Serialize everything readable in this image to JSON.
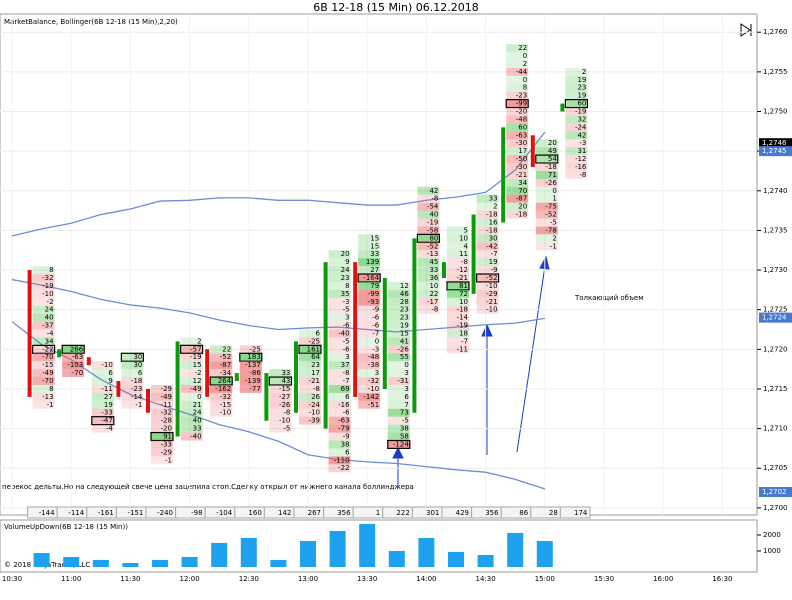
{
  "header": {
    "title": "6B 12-18 (15 Min)  06.12.2018"
  },
  "chart_data": [
    {
      "type": "footprint",
      "title": "MarketBalance, Bollinger(6B 12-18 (15 Min),2,20)",
      "ylim": [
        1.26991,
        1.27623
      ],
      "yticks": [
        {
          "value": 1.27,
          "label": "1,2700"
        },
        {
          "value": 1.2705,
          "label": "1,2705"
        },
        {
          "value": 1.271,
          "label": "1,2710"
        },
        {
          "value": 1.2715,
          "label": "1,2715"
        },
        {
          "value": 1.272,
          "label": "1,2720"
        },
        {
          "value": 1.2725,
          "label": "1,2725"
        },
        {
          "value": 1.273,
          "label": "1,2730"
        },
        {
          "value": 1.2735,
          "label": "1,2735"
        },
        {
          "value": 1.274,
          "label": "1,2740"
        },
        {
          "value": 1.2745,
          "label": "1,2745"
        },
        {
          "value": 1.275,
          "label": "1,2750"
        },
        {
          "value": 1.2755,
          "label": "1,2755"
        },
        {
          "value": 1.276,
          "label": "1,2760"
        }
      ],
      "x_labels": [
        "10:30",
        "11:00",
        "11:30",
        "12:00",
        "12:30",
        "13:00",
        "13:30",
        "14:00",
        "14:30",
        "15:00",
        "15:30",
        "16:00",
        "16:30"
      ],
      "price_markers": [
        {
          "value": 1.2746,
          "label": "1,2746",
          "color": "#000000"
        },
        {
          "value": 1.2745,
          "label": "1,2745",
          "color": "#4a78d0"
        },
        {
          "value": 1.2724,
          "label": "1,2724",
          "color": "#4a78d0"
        },
        {
          "value": 1.2702,
          "label": "1,2702",
          "color": "#4a78d0"
        }
      ],
      "bollinger": {
        "color": "#6b8fd6",
        "upper": [
          1.27343,
          1.27352,
          1.27359,
          1.2737,
          1.27377,
          1.27387,
          1.27388,
          1.27391,
          1.27391,
          1.27388,
          1.27388,
          1.27385,
          1.27382,
          1.27382,
          1.27388,
          1.27392,
          1.27398,
          1.27426,
          1.27474
        ],
        "middle": [
          1.27288,
          1.27281,
          1.27273,
          1.27263,
          1.27256,
          1.27252,
          1.27246,
          1.27237,
          1.2723,
          1.27225,
          1.27227,
          1.27228,
          1.27225,
          1.27222,
          1.27225,
          1.27228,
          1.27231,
          1.27233,
          1.27239
        ],
        "lower": [
          1.27235,
          1.27206,
          1.27187,
          1.27162,
          1.27143,
          1.2713,
          1.27118,
          1.27105,
          1.27096,
          1.27084,
          1.27067,
          1.27061,
          1.27058,
          1.27056,
          1.27052,
          1.27048,
          1.27045,
          1.27036,
          1.27024
        ]
      },
      "bars": [
        {
          "high": 1.273,
          "open": 1.273,
          "close": 1.2714,
          "delta": -144,
          "boxed": 10,
          "cells": [
            8,
            -32,
            -19,
            -10,
            -2,
            24,
            40,
            -37,
            -4,
            34,
            -22,
            -70,
            -15,
            -49,
            -70,
            8,
            -13,
            -1
          ]
        },
        {
          "high": 1.272,
          "open": 1.2719,
          "close": 1.272,
          "delta": -114,
          "boxed": 0,
          "cells": [
            266,
            -63,
            -103,
            -70
          ]
        },
        {
          "high": 1.2718,
          "open": 1.2719,
          "close": 1.2718,
          "delta": -161,
          "boxed": 7,
          "cells": [
            -10,
            6,
            9,
            -11,
            27,
            19,
            -33,
            -47,
            -4
          ]
        },
        {
          "high": 1.2719,
          "open": 1.2716,
          "close": 1.2714,
          "delta": -151,
          "boxed": 0,
          "cells": [
            30,
            30,
            6,
            -18,
            -23,
            -14,
            -1
          ]
        },
        {
          "high": 1.2715,
          "open": 1.2715,
          "close": 1.2712,
          "delta": -240,
          "boxed": 6,
          "cells": [
            -29,
            -49,
            -11,
            -32,
            -28,
            -20,
            91,
            -33,
            -29,
            -1
          ]
        },
        {
          "high": 1.2721,
          "open": 1.2709,
          "close": 1.2721,
          "delta": -98,
          "boxed": 1,
          "cells": [
            2,
            -57,
            -19,
            15,
            -2,
            12,
            -49,
            0,
            21,
            24,
            40,
            33,
            -40
          ]
        },
        {
          "high": 1.272,
          "open": 1.272,
          "close": 1.2714,
          "delta": -104,
          "boxed": 4,
          "cells": [
            22,
            -52,
            -87,
            -34,
            264,
            -162,
            -32,
            -15,
            -10
          ]
        },
        {
          "high": 1.272,
          "open": 1.2716,
          "close": 1.2717,
          "delta": 160,
          "boxed": 1,
          "cells": [
            -25,
            183,
            -137,
            -86,
            -139,
            -77
          ]
        },
        {
          "high": 1.2717,
          "open": 1.2711,
          "close": 1.2717,
          "delta": 142,
          "boxed": 1,
          "cells": [
            33,
            43,
            -15,
            -27,
            -26,
            -8,
            -10,
            -5
          ]
        },
        {
          "high": 1.2722,
          "open": 1.2712,
          "close": 1.2721,
          "delta": 267,
          "boxed": 2,
          "cells": [
            6,
            -25,
            161,
            64,
            23,
            17,
            -21,
            -8,
            26,
            -24,
            -10,
            -39
          ]
        },
        {
          "high": 1.2732,
          "open": 1.271,
          "close": 1.2731,
          "delta": 356,
          "cells": [
            20,
            9,
            24,
            23,
            8,
            35,
            -3,
            -5,
            3,
            -6,
            -40,
            -5,
            -6,
            3,
            37,
            -8,
            -7,
            69,
            6,
            -16,
            -6,
            -63,
            -79,
            -9,
            38,
            6,
            -110,
            -22
          ]
        },
        {
          "high": 1.2734,
          "open": 1.2731,
          "close": 1.2714,
          "delta": 1,
          "boxed": 5,
          "cells": [
            15,
            15,
            33,
            139,
            27,
            -164,
            79,
            -99,
            -93,
            -9,
            -6,
            -6,
            -7,
            0,
            -3,
            -48,
            -38,
            3,
            -32,
            -10,
            -142,
            -51
          ]
        },
        {
          "high": 1.2728,
          "open": 1.2715,
          "close": 1.2729,
          "delta": 222,
          "boxed": 20,
          "cells": [
            12,
            46,
            28,
            23,
            23,
            19,
            15,
            41,
            -26,
            55,
            0,
            3,
            -31,
            3,
            6,
            7,
            73,
            -5,
            38,
            58,
            -124
          ]
        },
        {
          "high": 1.274,
          "open": 1.2712,
          "close": 1.2734,
          "delta": 301,
          "boxed": 6,
          "cells": [
            42,
            -8,
            -54,
            40,
            -19,
            -58,
            80,
            -52,
            -13,
            45,
            33,
            36,
            10,
            22,
            -17,
            -8
          ]
        },
        {
          "high": 1.2735,
          "open": 1.2729,
          "close": 1.2731,
          "delta": 429,
          "boxed": 7,
          "cells": [
            5,
            10,
            4,
            11,
            -8,
            -12,
            -21,
            81,
            72,
            10,
            -18,
            -14,
            -19,
            18,
            -7,
            -11
          ]
        },
        {
          "high": 1.2739,
          "open": 1.2727,
          "close": 1.2737,
          "delta": 356,
          "boxed": 10,
          "cells": [
            33,
            2,
            -18,
            16,
            -18,
            30,
            -42,
            -7,
            19,
            -9,
            -52,
            -10,
            -29,
            -21,
            -10
          ]
        },
        {
          "high": 1.2758,
          "open": 1.2736,
          "close": 1.2748,
          "delta": 86,
          "boxed": 7,
          "cells": [
            22,
            0,
            2,
            -44,
            0,
            8,
            -23,
            -99,
            -20,
            -48,
            60,
            -63,
            -30,
            17,
            -50,
            -30,
            -21,
            34,
            70,
            -87,
            20,
            -18
          ]
        },
        {
          "high": 1.2746,
          "open": 1.2747,
          "close": 1.2743,
          "delta": 28,
          "boxed": 2,
          "cells": [
            20,
            49,
            54,
            -18,
            71,
            -26,
            0,
            1,
            -75,
            -52,
            -5,
            -78,
            2,
            -1
          ]
        },
        {
          "high": 1.2755,
          "open": 1.275,
          "close": 1.2751,
          "delta": 174,
          "boxed": 4,
          "cells": [
            2,
            19,
            23,
            19,
            60,
            -19,
            32,
            -24,
            42,
            -3,
            31,
            -12,
            -16,
            -8
          ]
        }
      ],
      "annotations": [
        "перекос дельты.Но на следующей свече цена зацепила стоп.Сделку открыл от нижнего канала боллинджера",
        "Толкающий объем"
      ],
      "copyright": "© 2018 NinjaTrader, LLC"
    },
    {
      "type": "bar",
      "title": "VolumeUpDown(6B 12-18 (15 Min))",
      "color": "#1ea1ef",
      "values": [
        875,
        625,
        440,
        250,
        440,
        625,
        1500,
        1810,
        440,
        1625,
        2250,
        2690,
        1000,
        1810,
        940,
        750,
        2125,
        1625,
        null
      ],
      "ylim": [
        0,
        2810
      ],
      "yticks": [
        1000,
        2000
      ]
    }
  ]
}
